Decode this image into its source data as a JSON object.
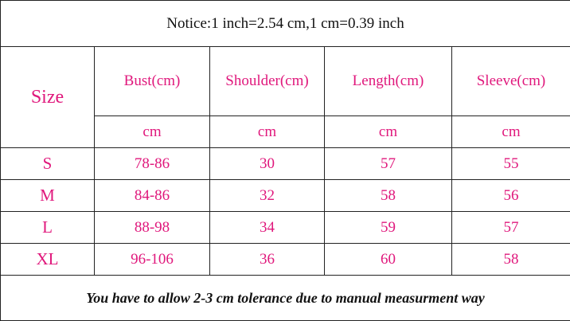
{
  "notice": "Notice:1 inch=2.54 cm,1 cm=0.39 inch",
  "table": {
    "headers": [
      "Size",
      "Bust(cm)",
      "Shoulder(cm)",
      "Length(cm)",
      "Sleeve(cm)"
    ],
    "units": [
      "cm",
      "cm",
      "cm",
      "cm"
    ],
    "rows": [
      [
        "S",
        "78-86",
        "30",
        "57",
        "55"
      ],
      [
        "M",
        "84-86",
        "32",
        "58",
        "56"
      ],
      [
        "L",
        "88-98",
        "34",
        "59",
        "57"
      ],
      [
        "XL",
        "96-106",
        "36",
        "60",
        "58"
      ]
    ]
  },
  "footer": "You have to allow 2-3 cm tolerance due to manual measurment way"
}
